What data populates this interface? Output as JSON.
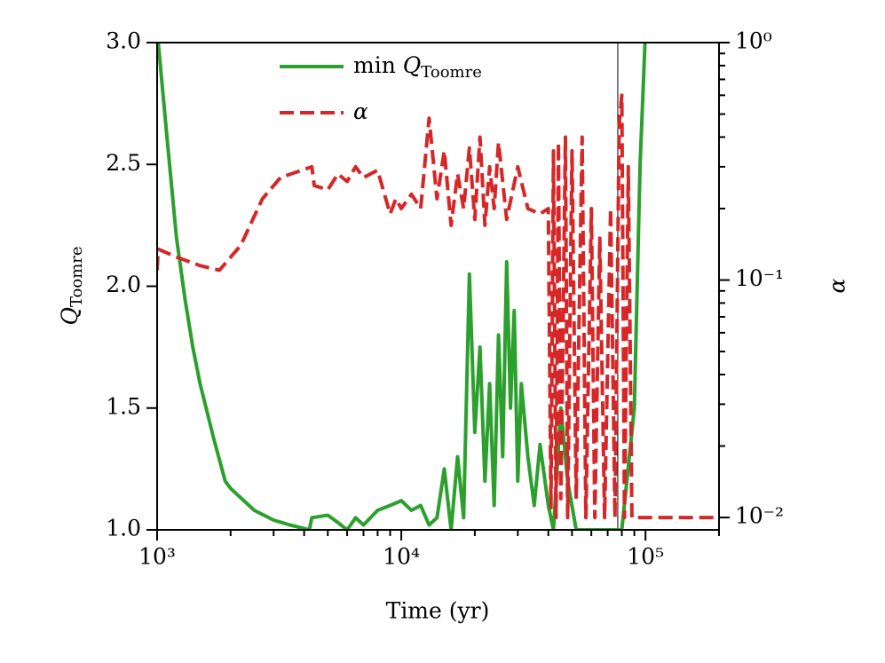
{
  "chart_data": {
    "type": "line",
    "x_label": "Time (yr)",
    "y_label": {
      "main": "Q",
      "sub": "Toomre"
    },
    "y2_label": "α",
    "xscale": "log",
    "y2scale": "log",
    "xlim": [
      1000,
      200000
    ],
    "xticks": [
      {
        "value": 1000,
        "label": "10³"
      },
      {
        "value": 10000,
        "label": "10⁴"
      },
      {
        "value": 100000,
        "label": "10⁵"
      }
    ],
    "xticks_minor": [
      2000,
      3000,
      4000,
      5000,
      6000,
      7000,
      8000,
      9000,
      20000,
      30000,
      40000,
      50000,
      60000,
      70000,
      80000,
      90000,
      200000
    ],
    "ylim": [
      1,
      3
    ],
    "yticks": [
      {
        "value": 1,
        "label": "1.0"
      },
      1.5,
      {
        "value": 2,
        "label": "2.0"
      },
      2.5,
      {
        "value": 3,
        "label": "3.0"
      }
    ],
    "y2lim": [
      0.00887,
      1
    ],
    "y2ticks": [
      {
        "value": 0.01,
        "label": "10⁻²"
      },
      {
        "value": 0.1,
        "label": "10⁻¹"
      },
      {
        "value": 1,
        "label": "10⁰"
      }
    ],
    "y2ticks_minor": [
      0.02,
      0.03,
      0.04,
      0.05,
      0.06,
      0.07,
      0.08,
      0.09,
      0.2,
      0.3,
      0.4,
      0.5,
      0.6,
      0.7,
      0.8,
      0.9
    ],
    "vline_x": 77000,
    "legend": "upper center",
    "series": [
      {
        "name": "min Q",
        "name_sub": "Toomre",
        "color": "#2ca02c",
        "dash": false,
        "x": [
          1000,
          1100,
          1200,
          1300,
          1400,
          1500,
          1700,
          1900,
          2000,
          2500,
          3000,
          3500,
          4200,
          4300,
          5000,
          5500,
          6000,
          6500,
          7000,
          8000,
          9000,
          10000,
          11000,
          12000,
          13000,
          14000,
          15000,
          16000,
          17000,
          18000,
          19000,
          20000,
          21000,
          22000,
          23000,
          24000,
          25000,
          26000,
          27000,
          28000,
          29000,
          30000,
          31000,
          33000,
          35000,
          37000,
          40000,
          42000,
          45000,
          48000,
          52000,
          60000,
          70000,
          80000,
          90000,
          95000,
          100000
        ],
        "values": [
          3.05,
          2.6,
          2.2,
          1.95,
          1.75,
          1.6,
          1.38,
          1.2,
          1.17,
          1.08,
          1.04,
          1.02,
          1.0,
          1.05,
          1.06,
          1.03,
          1.0,
          1.05,
          1.02,
          1.08,
          1.1,
          1.12,
          1.08,
          1.1,
          1.02,
          1.05,
          1.25,
          1.0,
          1.3,
          1.05,
          2.05,
          1.4,
          1.75,
          1.2,
          1.6,
          1.1,
          1.8,
          1.3,
          2.1,
          1.5,
          1.9,
          1.2,
          1.6,
          1.3,
          1.1,
          1.35,
          1.1,
          1.0,
          1.5,
          1.2,
          1.0,
          1.0,
          1.0,
          1.0,
          1.5,
          2.5,
          3.05
        ]
      },
      {
        "name": "α",
        "color": "#d62728",
        "dash": true,
        "axis": "y2",
        "x": [
          1000,
          1010,
          1200,
          1500,
          1800,
          2200,
          2700,
          3200,
          4300,
          4400,
          5000,
          5500,
          6000,
          6500,
          7000,
          8000,
          9000,
          9500,
          10000,
          11000,
          12000,
          13000,
          14000,
          15000,
          16000,
          17000,
          18000,
          19000,
          20000,
          21000,
          22000,
          23000,
          24000,
          25000,
          27000,
          30000,
          33000,
          37000,
          40000,
          41000,
          42000,
          43000,
          44000,
          45000,
          47000,
          48000,
          50000,
          52000,
          55000,
          57000,
          60000,
          62000,
          65000,
          68000,
          72000,
          75000,
          78000,
          80000,
          82000,
          85000,
          88000,
          200000
        ],
        "values": [
          0.11,
          0.135,
          0.125,
          0.115,
          0.11,
          0.14,
          0.22,
          0.27,
          0.3,
          0.25,
          0.24,
          0.28,
          0.26,
          0.3,
          0.27,
          0.29,
          0.19,
          0.22,
          0.2,
          0.23,
          0.2,
          0.48,
          0.22,
          0.35,
          0.17,
          0.28,
          0.2,
          0.36,
          0.18,
          0.4,
          0.17,
          0.3,
          0.2,
          0.38,
          0.18,
          0.3,
          0.2,
          0.19,
          0.2,
          0.011,
          0.35,
          0.01,
          0.38,
          0.012,
          0.4,
          0.01,
          0.35,
          0.012,
          0.4,
          0.01,
          0.2,
          0.01,
          0.15,
          0.01,
          0.2,
          0.01,
          0.45,
          0.6,
          0.01,
          0.3,
          0.01,
          0.01
        ]
      }
    ]
  }
}
